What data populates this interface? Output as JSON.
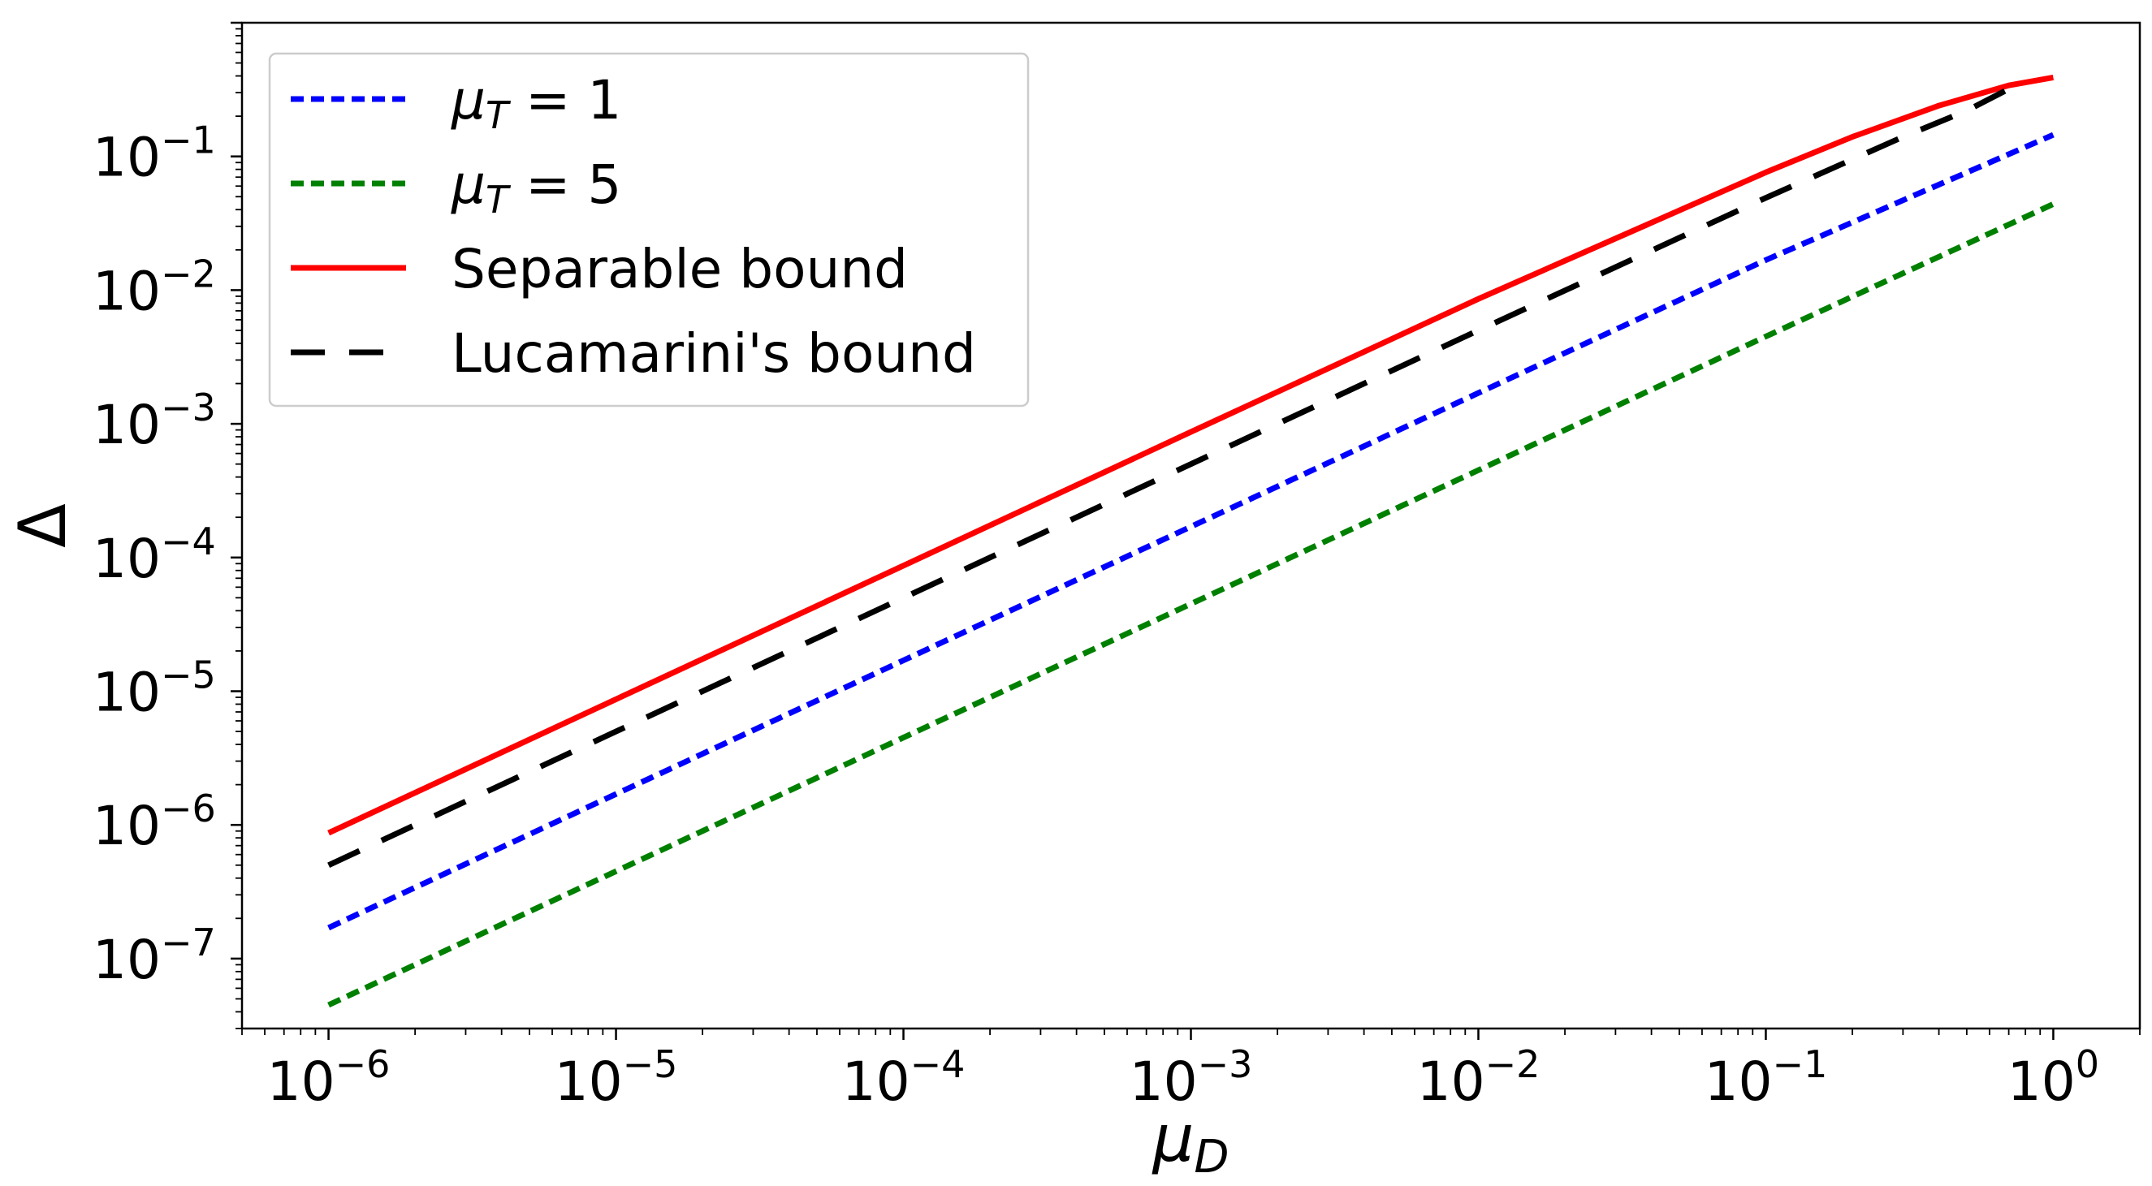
{
  "chart_data": {
    "type": "line",
    "xscale": "log",
    "yscale": "log",
    "xlim": [
      5e-07,
      2
    ],
    "ylim": [
      3e-08,
      1
    ],
    "xticks": [
      1e-06,
      1e-05,
      0.0001,
      0.001,
      0.01,
      0.1,
      1
    ],
    "xtick_labels": [
      {
        "base": "10",
        "exp": "−6"
      },
      {
        "base": "10",
        "exp": "−5"
      },
      {
        "base": "10",
        "exp": "−4"
      },
      {
        "base": "10",
        "exp": "−3"
      },
      {
        "base": "10",
        "exp": "−2"
      },
      {
        "base": "10",
        "exp": "−1"
      },
      {
        "base": "10",
        "exp": "0"
      }
    ],
    "yticks": [
      1e-07,
      1e-06,
      1e-05,
      0.0001,
      0.001,
      0.01,
      0.1
    ],
    "ytick_labels": [
      {
        "base": "10",
        "exp": "−7"
      },
      {
        "base": "10",
        "exp": "−6"
      },
      {
        "base": "10",
        "exp": "−5"
      },
      {
        "base": "10",
        "exp": "−4"
      },
      {
        "base": "10",
        "exp": "−3"
      },
      {
        "base": "10",
        "exp": "−2"
      },
      {
        "base": "10",
        "exp": "−1"
      }
    ],
    "xlabel": {
      "main": "μ",
      "sub": "D"
    },
    "ylabel": "Δ",
    "grid": false,
    "legend_position": "top-left",
    "series": [
      {
        "name": {
          "main": "μ",
          "sub": "T",
          "rest": " = 1"
        },
        "color": "#0000ff",
        "style": "dotted",
        "x": [
          1e-06,
          1e-05,
          0.0001,
          0.001,
          0.01,
          0.1,
          1
        ],
        "y": [
          1.7e-07,
          1.7e-06,
          1.7e-05,
          0.00017,
          0.0017,
          0.0168,
          0.145
        ]
      },
      {
        "name": {
          "main": "μ",
          "sub": "T",
          "rest": " = 5"
        },
        "color": "#008000",
        "style": "dotted",
        "x": [
          1e-06,
          1e-05,
          0.0001,
          0.001,
          0.01,
          0.1,
          1
        ],
        "y": [
          4.5e-08,
          4.5e-07,
          4.5e-06,
          4.5e-05,
          0.00045,
          0.0045,
          0.044
        ]
      },
      {
        "name": {
          "main": "Separable bound",
          "sub": "",
          "rest": ""
        },
        "color": "#ff0000",
        "style": "solid",
        "x": [
          1e-06,
          1e-05,
          0.0001,
          0.001,
          0.01,
          0.1,
          0.2,
          0.4,
          0.7,
          1
        ],
        "y": [
          8.7e-07,
          8.7e-06,
          8.7e-05,
          0.00087,
          0.0086,
          0.076,
          0.14,
          0.24,
          0.34,
          0.39
        ]
      },
      {
        "name": {
          "main": "Lucamarini's bound",
          "sub": "",
          "rest": ""
        },
        "color": "#000000",
        "style": "dashed",
        "x": [
          1e-06,
          1e-05,
          0.0001,
          0.001,
          0.01,
          0.1,
          0.3,
          0.5,
          0.8
        ],
        "y": [
          5e-07,
          5e-06,
          5e-05,
          0.0005,
          0.005,
          0.049,
          0.14,
          0.22,
          0.37
        ]
      }
    ]
  }
}
